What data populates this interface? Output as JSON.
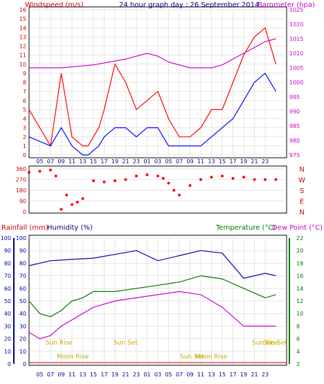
{
  "colors": {
    "wind": "#ff0000",
    "gust": "#ff0000",
    "wind_avg": "#0000ff",
    "pressure": "#cc00cc",
    "humidity": "#0000aa",
    "temperature": "#007700",
    "dewpoint": "#cc00cc",
    "direction": "#ff0000",
    "rain": "#cc0000",
    "grid": "#cccccc",
    "ticks": "#000080",
    "sun_moon": "#ccaa00"
  },
  "chart_data": [
    {
      "id": "wind-pressure",
      "type": "line",
      "title": "24 hour graph day : 26 September 2014",
      "left_axis_label": "Windspeed (m/s)",
      "right_axis_label": "Barometer (hpa)",
      "x_ticks": [
        "05",
        "07",
        "09",
        "11",
        "13",
        "15",
        "17",
        "19",
        "21",
        "23",
        "01",
        "03",
        "05",
        "07",
        "09",
        "11",
        "13",
        "15",
        "17",
        "19",
        "21",
        "23"
      ],
      "y_left": {
        "min": 0,
        "max": 16,
        "ticks": [
          0,
          1,
          2,
          3,
          4,
          5,
          6,
          7,
          8,
          9,
          10,
          11,
          12,
          13,
          14,
          15,
          16
        ]
      },
      "y_right": {
        "min": 975,
        "max": 1025,
        "ticks": [
          975,
          980,
          985,
          990,
          995,
          1000,
          1005,
          1010,
          1015,
          1020,
          1025
        ]
      },
      "series": [
        {
          "key": "gust",
          "x": [
            0,
            4,
            6,
            8,
            10,
            11,
            13,
            14,
            16,
            18,
            20,
            22,
            24,
            26,
            28,
            30,
            32,
            34,
            36,
            38,
            40,
            42,
            44,
            46
          ],
          "y": [
            5,
            1,
            9,
            2,
            1,
            1,
            3,
            5,
            10,
            8,
            5,
            6,
            7,
            4,
            2,
            2,
            3,
            5,
            5,
            8,
            11,
            13,
            14,
            10
          ]
        },
        {
          "key": "wind_avg",
          "x": [
            0,
            4,
            6,
            8,
            10,
            11,
            13,
            14,
            16,
            18,
            20,
            22,
            24,
            26,
            28,
            30,
            32,
            34,
            36,
            38,
            40,
            42,
            44,
            46
          ],
          "y": [
            2,
            1,
            3,
            1,
            0,
            0,
            1,
            2,
            3,
            3,
            2,
            3,
            3,
            1,
            1,
            1,
            1,
            2,
            3,
            4,
            6,
            8,
            9,
            7
          ]
        },
        {
          "key": "pressure",
          "x": [
            0,
            6,
            12,
            18,
            22,
            24,
            26,
            28,
            30,
            32,
            34,
            36,
            38,
            40,
            42,
            44,
            46
          ],
          "y": [
            1005,
            1005,
            1006,
            1008,
            1010,
            1009,
            1007,
            1006,
            1005,
            1005,
            1005,
            1006,
            1008,
            1010,
            1012,
            1014,
            1015
          ]
        }
      ]
    },
    {
      "id": "wind-direction",
      "type": "scatter",
      "y": {
        "min": 0,
        "max": 360,
        "ticks": [
          0,
          90,
          180,
          270,
          360
        ]
      },
      "compass_labels": [
        "N",
        "W",
        "S",
        "E",
        "N"
      ],
      "series": [
        {
          "key": "direction",
          "x": [
            0,
            2,
            4,
            5,
            6,
            7,
            8,
            9,
            10,
            12,
            14,
            16,
            18,
            20,
            22,
            24,
            25,
            26,
            27,
            28,
            30,
            32,
            34,
            36,
            38,
            40,
            42,
            44,
            46
          ],
          "y": [
            330,
            340,
            350,
            300,
            20,
            140,
            60,
            80,
            110,
            260,
            250,
            260,
            270,
            300,
            310,
            300,
            280,
            240,
            180,
            140,
            220,
            270,
            290,
            300,
            280,
            290,
            270,
            270,
            270
          ]
        }
      ]
    },
    {
      "id": "humidity-temperature",
      "type": "line",
      "left_axis_label_1": "Rainfall (mm)",
      "left_axis_label_2": "Humidity (%)",
      "right_axis_label_1": "Temperature (°C)",
      "right_axis_label_2": "Dew Point (°C)",
      "y_left_rain": {
        "min": 0,
        "max": 100,
        "ticks": [
          0,
          10,
          20,
          30,
          40,
          50,
          60,
          70,
          80,
          90,
          100
        ]
      },
      "y_left_humidity": {
        "min": 0,
        "max": 100,
        "ticks": [
          0,
          10,
          20,
          30,
          40,
          50,
          60,
          70,
          80,
          90,
          100
        ]
      },
      "y_right": {
        "min": 2,
        "max": 22,
        "ticks": [
          2,
          4,
          6,
          8,
          10,
          12,
          14,
          16,
          18,
          20,
          22
        ]
      },
      "x_ticks": [
        "05",
        "07",
        "09",
        "11",
        "13",
        "15",
        "17",
        "19",
        "21",
        "23",
        "01",
        "03",
        "05",
        "07",
        "09",
        "11",
        "13",
        "15",
        "17",
        "19",
        "21",
        "23"
      ],
      "annotations": [
        "Sun Rise",
        "Sun Set",
        "Moon Rise",
        "Sun Set",
        "Moon Rise",
        "Sun Rise",
        "Sun Set"
      ],
      "series": [
        {
          "key": "humidity",
          "x": [
            0,
            4,
            8,
            12,
            16,
            20,
            24,
            28,
            32,
            36,
            40,
            44,
            46
          ],
          "y": [
            78,
            82,
            83,
            84,
            87,
            90,
            82,
            86,
            90,
            88,
            68,
            72,
            70
          ]
        },
        {
          "key": "temperature",
          "x": [
            0,
            2,
            4,
            6,
            8,
            10,
            12,
            16,
            20,
            24,
            28,
            32,
            36,
            40,
            44,
            46
          ],
          "y": [
            12,
            10,
            9.5,
            10.5,
            12,
            12.5,
            13.5,
            13.5,
            14,
            14.5,
            15,
            16,
            15.5,
            14,
            12.5,
            13
          ]
        },
        {
          "key": "dewpoint",
          "x": [
            0,
            2,
            4,
            6,
            8,
            10,
            12,
            16,
            20,
            24,
            28,
            32,
            36,
            40,
            44,
            46
          ],
          "y": [
            7,
            6,
            6.5,
            8,
            9,
            10,
            11,
            12,
            12.5,
            13,
            13.5,
            13,
            11,
            8,
            8,
            8
          ]
        }
      ]
    }
  ]
}
